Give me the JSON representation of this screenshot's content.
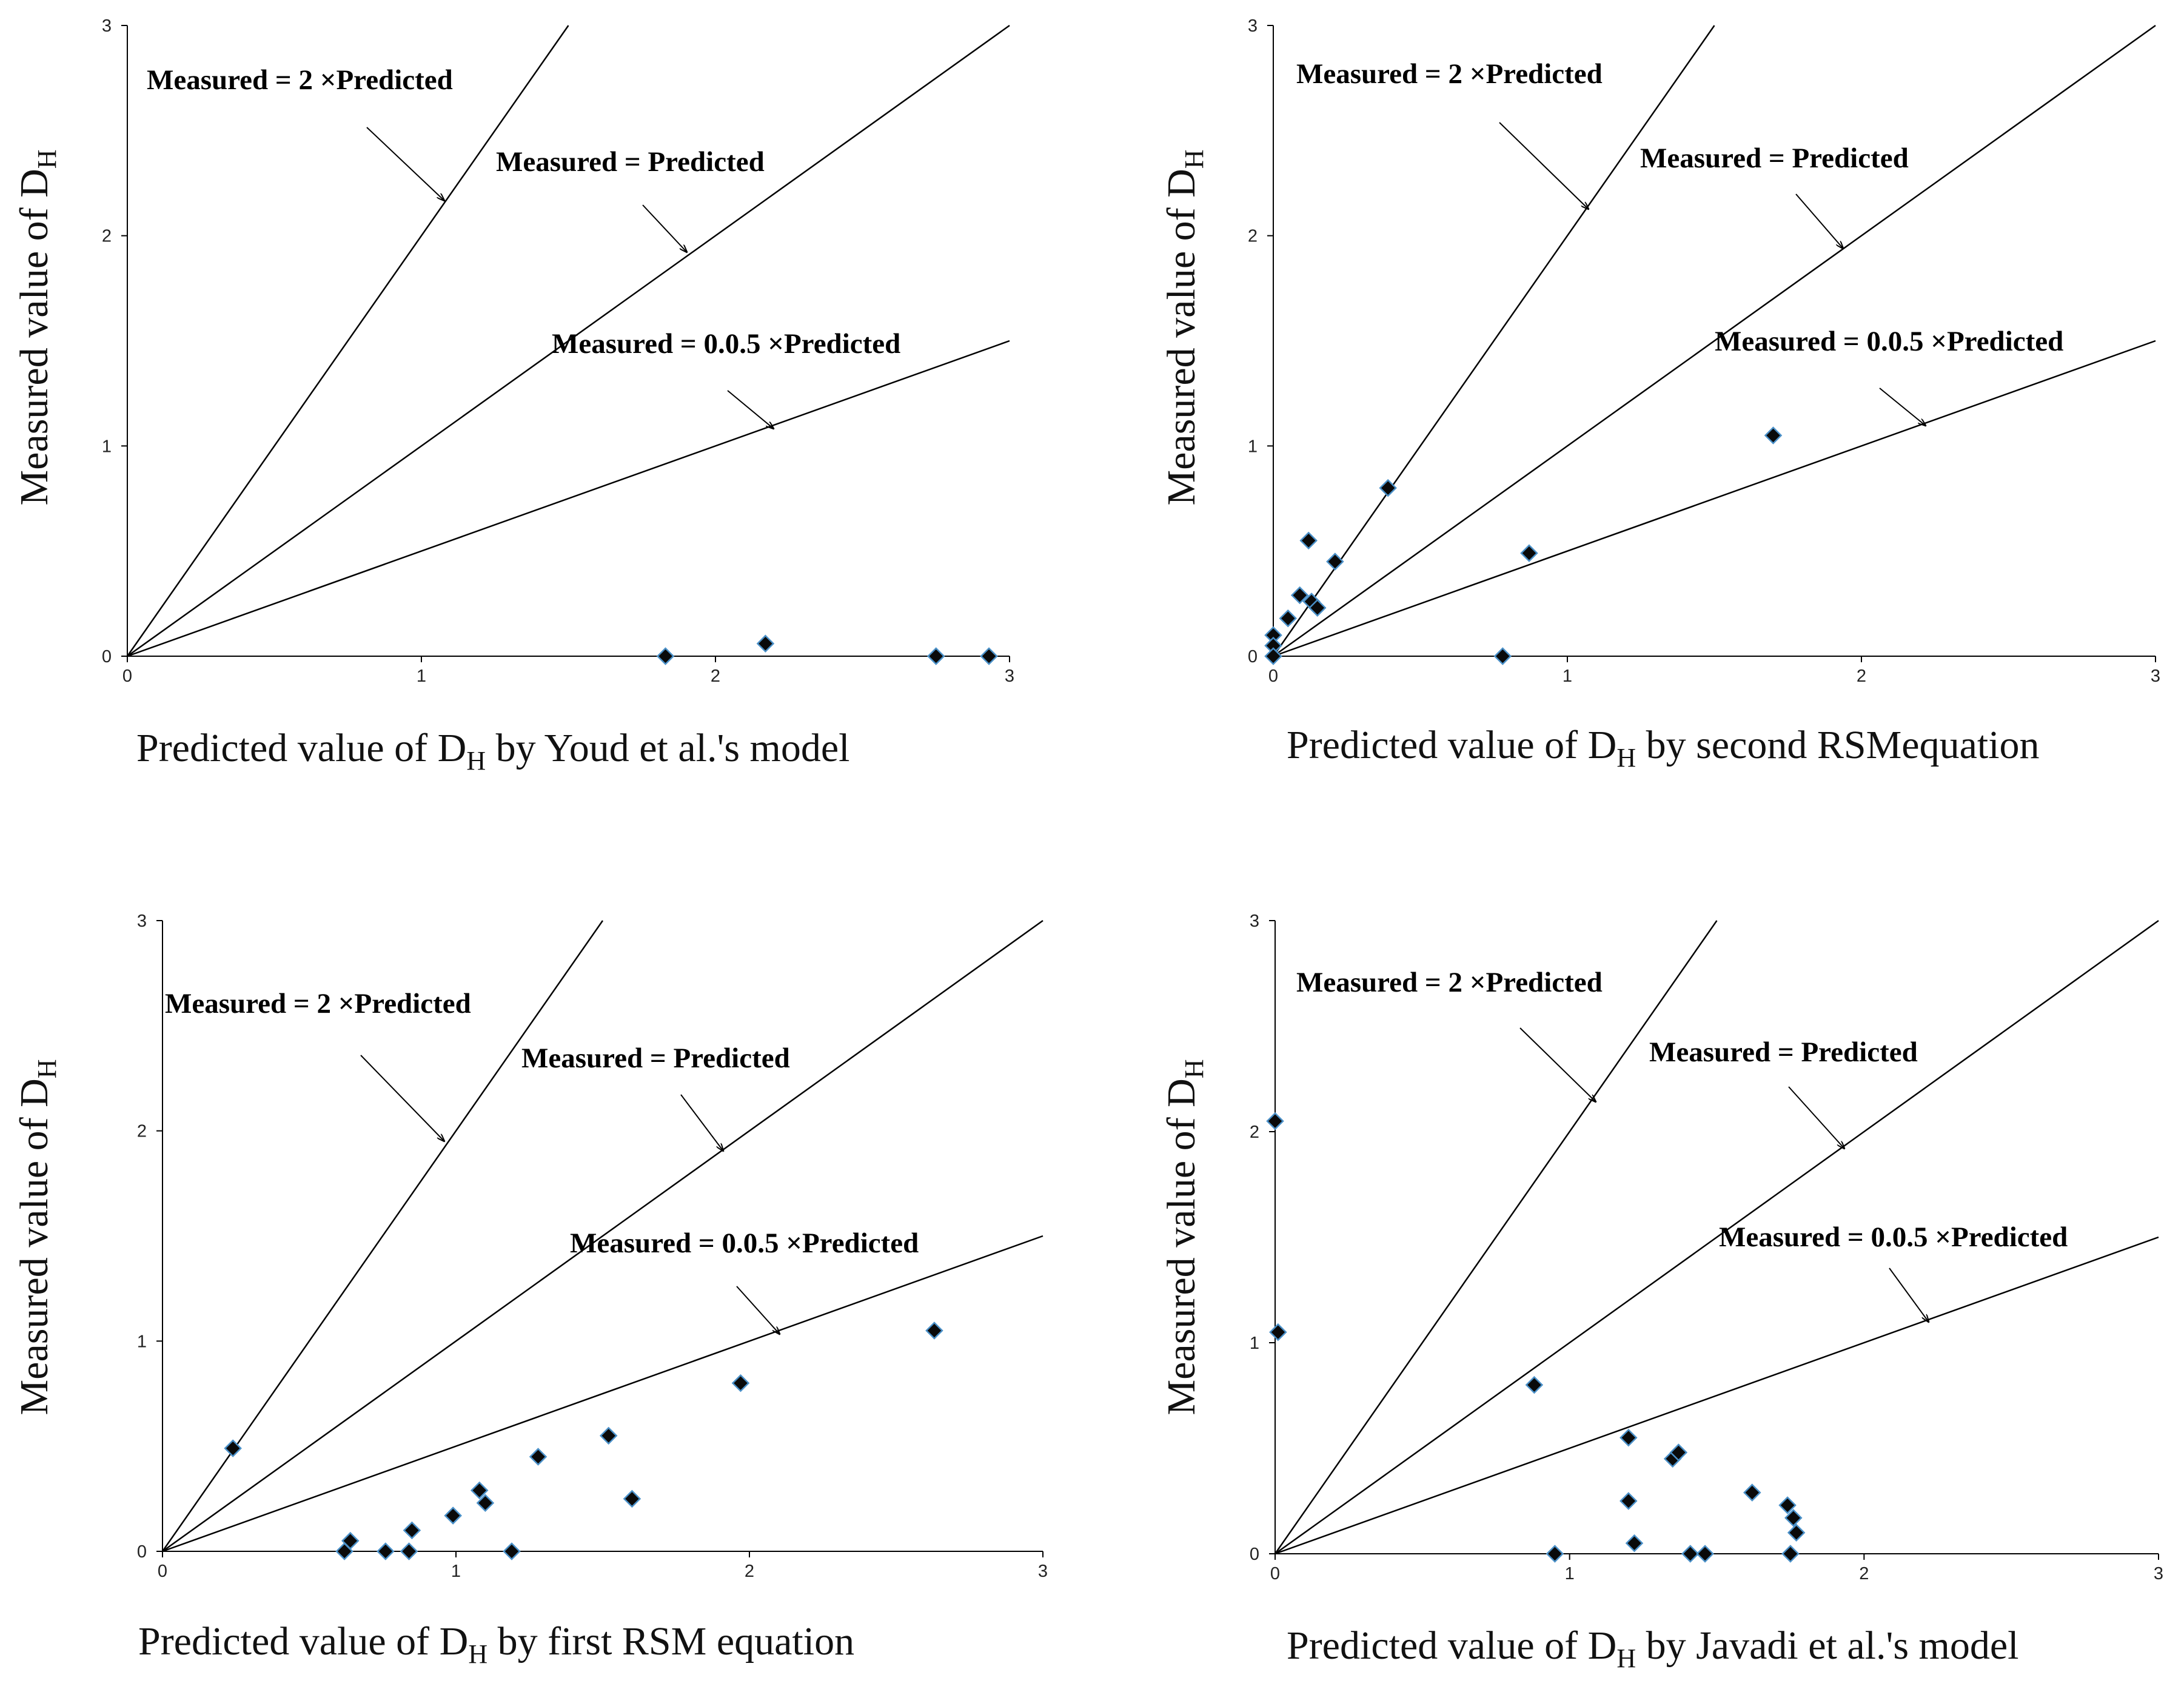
{
  "chart_data": [
    {
      "type": "scatter",
      "panel": "top-left",
      "xlabel": "Predicted value of D",
      "xlabel_sub": "H",
      "xlabel_suffix": " by Youd et al.'s model",
      "ylabel": "Measured value of D",
      "ylabel_sub": "H",
      "xlim": [
        0,
        3
      ],
      "ylim": [
        0,
        3
      ],
      "xticks": [
        "0",
        "1",
        "2",
        "3"
      ],
      "yticks": [
        "0",
        "1",
        "2",
        "3"
      ],
      "reference_lines": [
        {
          "name": "Measured = 2 ×Predicted",
          "slope": 2
        },
        {
          "name": "Measured = Predicted",
          "slope": 1
        },
        {
          "name": "Measured = 0.0.5 ×Predicted",
          "slope": 0.5
        }
      ],
      "annotations": [
        "Measured = 2 ×Predicted",
        "Measured = Predicted",
        "Measured = 0.0.5 ×Predicted"
      ],
      "points": [
        [
          1.83,
          0.0
        ],
        [
          2.17,
          0.06
        ],
        [
          2.75,
          0.0
        ],
        [
          2.93,
          0.0
        ]
      ]
    },
    {
      "type": "scatter",
      "panel": "top-right",
      "xlabel": "Predicted value of D",
      "xlabel_sub": "H",
      "xlabel_suffix": " by second RSMequation",
      "ylabel": "Measured value of D",
      "ylabel_sub": "H",
      "xlim": [
        0,
        3
      ],
      "ylim": [
        0,
        3
      ],
      "xticks": [
        "0",
        "1",
        "2",
        "3"
      ],
      "yticks": [
        "0",
        "1",
        "2",
        "3"
      ],
      "reference_lines": [
        {
          "name": "Measured = 2 ×Predicted",
          "slope": 2
        },
        {
          "name": "Measured = Predicted",
          "slope": 1
        },
        {
          "name": "Measured = 0.0.5 ×Predicted",
          "slope": 0.5
        }
      ],
      "annotations": [
        "Measured = 2 ×Predicted",
        "Measured = Predicted",
        "Measured = 0.0.5 ×Predicted"
      ],
      "points": [
        [
          0.0,
          0.1
        ],
        [
          0.0,
          0.05
        ],
        [
          0.0,
          0.0
        ],
        [
          0.05,
          0.18
        ],
        [
          0.09,
          0.29
        ],
        [
          0.12,
          0.55
        ],
        [
          0.13,
          0.26
        ],
        [
          0.15,
          0.23
        ],
        [
          0.21,
          0.45
        ],
        [
          0.39,
          0.8
        ],
        [
          0.78,
          0.0
        ],
        [
          0.87,
          0.49
        ],
        [
          1.7,
          1.05
        ]
      ]
    },
    {
      "type": "scatter",
      "panel": "bottom-left",
      "xlabel": "Predicted value of D",
      "xlabel_sub": "H",
      "xlabel_suffix": " by  first RSM equation",
      "ylabel": "Measured value of D",
      "ylabel_sub": "H",
      "xlim": [
        0,
        3
      ],
      "ylim": [
        0,
        3
      ],
      "xticks": [
        "0",
        "1",
        "2",
        "3"
      ],
      "yticks": [
        "0",
        "1",
        "2",
        "3"
      ],
      "reference_lines": [
        {
          "name": "Measured = 2 ×Predicted",
          "slope": 2
        },
        {
          "name": "Measured = Predicted",
          "slope": 1
        },
        {
          "name": "Measured = 0.0.5 ×Predicted",
          "slope": 0.5
        }
      ],
      "annotations": [
        "Measured = 2 ×Predicted",
        "Measured = Predicted",
        "Measured = 0.0.5 ×Predicted"
      ],
      "points": [
        [
          0.24,
          0.49
        ],
        [
          0.62,
          0.0
        ],
        [
          0.64,
          0.05
        ],
        [
          0.76,
          0.0
        ],
        [
          0.84,
          0.0
        ],
        [
          0.85,
          0.1
        ],
        [
          0.99,
          0.17
        ],
        [
          1.08,
          0.29
        ],
        [
          1.1,
          0.23
        ],
        [
          1.19,
          0.0
        ],
        [
          1.28,
          0.45
        ],
        [
          1.52,
          0.55
        ],
        [
          1.6,
          0.25
        ],
        [
          1.97,
          0.8
        ],
        [
          2.63,
          1.05
        ]
      ]
    },
    {
      "type": "scatter",
      "panel": "bottom-right",
      "xlabel": "Predicted value of D",
      "xlabel_sub": "H",
      "xlabel_suffix": " by Javadi et al.'s model",
      "ylabel": "Measured value of D",
      "ylabel_sub": "H",
      "xlim": [
        0,
        3
      ],
      "ylim": [
        0,
        3
      ],
      "xticks": [
        "0",
        "1",
        "2",
        "3"
      ],
      "yticks": [
        "0",
        "1",
        "2",
        "3"
      ],
      "reference_lines": [
        {
          "name": "Measured = 2 ×Predicted",
          "slope": 2
        },
        {
          "name": "Measured = Predicted",
          "slope": 1
        },
        {
          "name": "Measured = 0.0.5 ×Predicted",
          "slope": 0.5
        }
      ],
      "annotations": [
        "Measured = 2 ×Predicted",
        "Measured = Predicted",
        "Measured = 0.0.5 ×Predicted"
      ],
      "points": [
        [
          0.0,
          2.05
        ],
        [
          0.01,
          1.05
        ],
        [
          0.88,
          0.8
        ],
        [
          0.95,
          0.0
        ],
        [
          1.2,
          0.55
        ],
        [
          1.2,
          0.25
        ],
        [
          1.22,
          0.05
        ],
        [
          1.35,
          0.45
        ],
        [
          1.37,
          0.48
        ],
        [
          1.41,
          0.0
        ],
        [
          1.46,
          0.0
        ],
        [
          1.62,
          0.29
        ],
        [
          1.74,
          0.23
        ],
        [
          1.75,
          0.0
        ],
        [
          1.76,
          0.17
        ],
        [
          1.77,
          0.1
        ]
      ]
    }
  ],
  "colors": {
    "marker_fill": "#0a0a0a",
    "marker_edge": "#4a90c8",
    "line": "#000000",
    "text": "#111111"
  },
  "marker_shape": "diamond"
}
